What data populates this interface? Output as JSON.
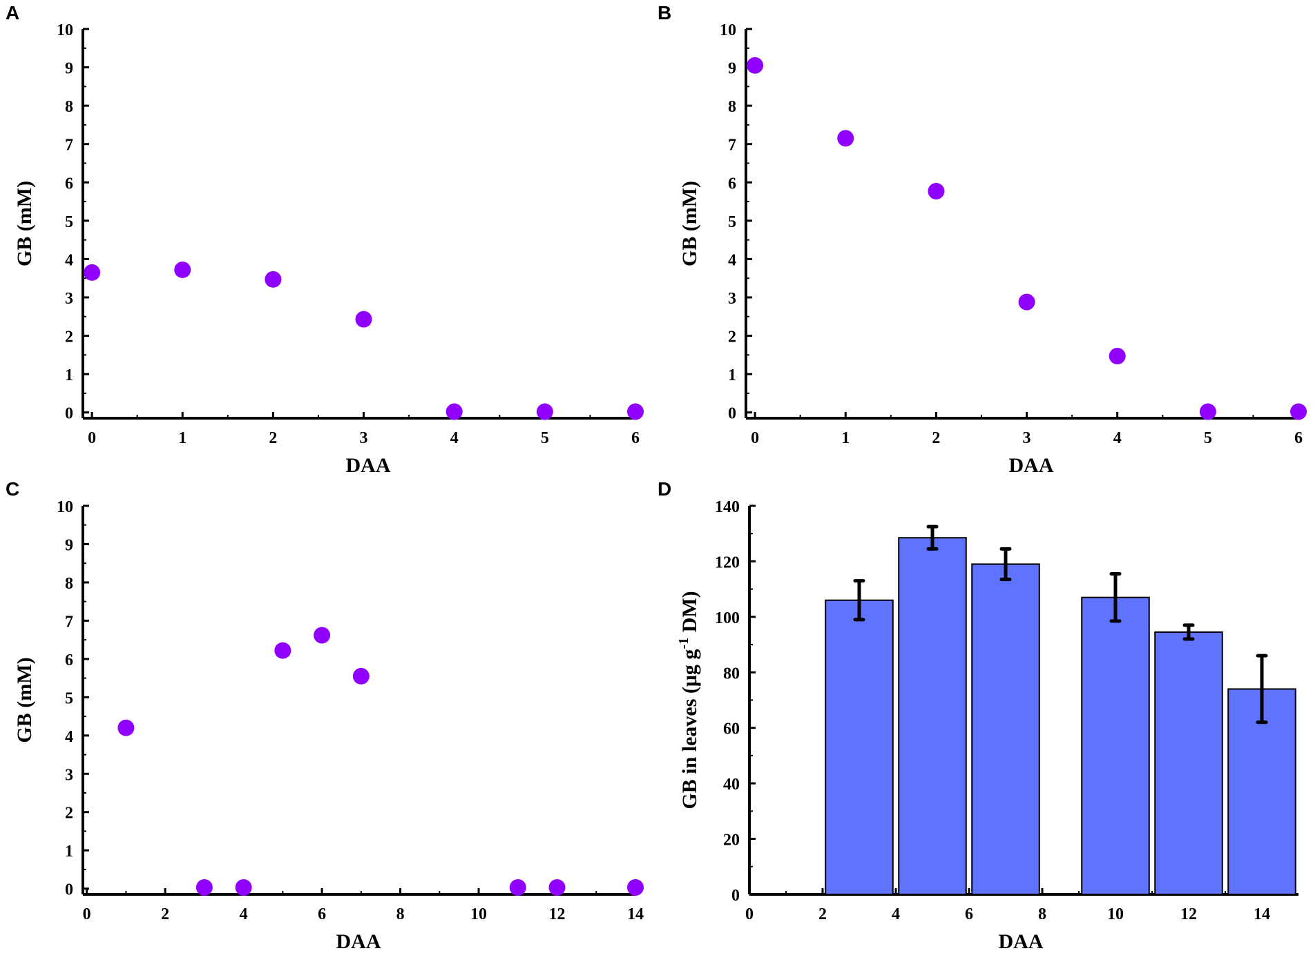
{
  "point_color": "#8F00FF",
  "bar_color": "#5F73FF",
  "chart_data": [
    {
      "panel": "A",
      "type": "scatter",
      "xlabel": "DAA",
      "ylabel": "GB (mM)",
      "xlim": [
        -0.1,
        6
      ],
      "ylim": [
        -0.15,
        10
      ],
      "xticks": [
        "0",
        "1",
        "2",
        "3",
        "4",
        "5",
        "6"
      ],
      "yticks": [
        "0",
        "1",
        "2",
        "3",
        "4",
        "5",
        "6",
        "7",
        "8",
        "9",
        "10"
      ],
      "x": [
        0,
        1,
        2,
        3,
        4,
        5,
        6
      ],
      "y": [
        3.65,
        3.72,
        3.47,
        2.43,
        0.02,
        0.02,
        0.02
      ]
    },
    {
      "panel": "B",
      "type": "scatter",
      "xlabel": "DAA",
      "ylabel": "GB (mM)",
      "xlim": [
        -0.1,
        6
      ],
      "ylim": [
        -0.15,
        10
      ],
      "xticks": [
        "0",
        "1",
        "2",
        "3",
        "4",
        "5",
        "6"
      ],
      "yticks": [
        "0",
        "1",
        "2",
        "3",
        "4",
        "5",
        "6",
        "7",
        "8",
        "9",
        "10"
      ],
      "x": [
        0,
        1,
        2,
        3,
        4,
        5,
        6
      ],
      "y": [
        9.05,
        7.15,
        5.77,
        2.88,
        1.47,
        0.02,
        0.02
      ]
    },
    {
      "panel": "C",
      "type": "scatter",
      "xlabel": "DAA",
      "ylabel": "GB (mM)",
      "xlim": [
        -0.1,
        14
      ],
      "ylim": [
        -0.15,
        10
      ],
      "xticks": [
        "0",
        "2",
        "4",
        "6",
        "8",
        "10",
        "12",
        "14"
      ],
      "yticks": [
        "0",
        "1",
        "2",
        "3",
        "4",
        "5",
        "6",
        "7",
        "8",
        "9",
        "10"
      ],
      "x": [
        1,
        3,
        4,
        5,
        6,
        7,
        11,
        12,
        14
      ],
      "y": [
        4.2,
        0.03,
        0.03,
        6.22,
        6.62,
        5.55,
        0.03,
        0.03,
        0.03
      ]
    },
    {
      "panel": "D",
      "type": "bar",
      "xlabel": "DAA",
      "ylabel_main": "GB in leaves (μg g",
      "ylabel_sup": "-1",
      "ylabel_end": " DM)",
      "xlim": [
        0,
        15
      ],
      "ylim": [
        0,
        140
      ],
      "xticks": [
        "0",
        "2",
        "4",
        "6",
        "8",
        "10",
        "12",
        "14"
      ],
      "yticks": [
        "0",
        "20",
        "40",
        "60",
        "80",
        "100",
        "120",
        "140"
      ],
      "x": [
        3,
        5,
        7,
        10,
        12,
        14
      ],
      "values": [
        106,
        128.5,
        119,
        107,
        94.5,
        74
      ],
      "errors": [
        7,
        4,
        5.5,
        8.5,
        2.5,
        12
      ]
    }
  ]
}
